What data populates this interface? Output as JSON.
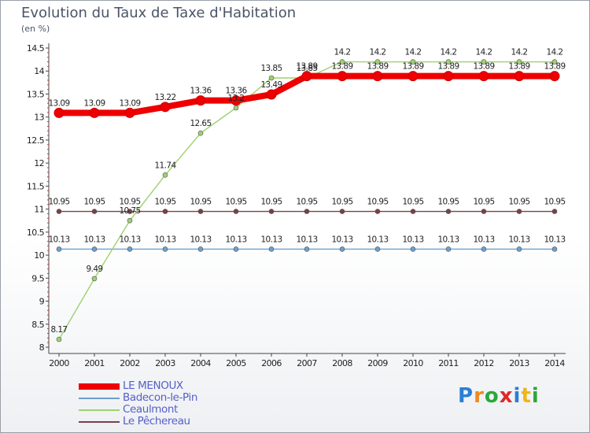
{
  "title": "Evolution du Taux de Taxe d'Habitation",
  "subtitle": "(en %)",
  "brand": {
    "letters": [
      "P",
      "r",
      "o",
      "x",
      "i",
      "t",
      "i"
    ],
    "colors": [
      "#2b7fd4",
      "#f08a1c",
      "#2aa83a",
      "#e02828",
      "#2b7fd4",
      "#f0b41c",
      "#2aa83a"
    ]
  },
  "chart_data": {
    "type": "line",
    "title": "Evolution du Taux de Taxe d'Habitation",
    "ylabel": "(en %)",
    "xlabel": "",
    "x": [
      "2000",
      "2001",
      "2002",
      "2003",
      "2004",
      "2005",
      "2006",
      "2007",
      "2008",
      "2009",
      "2010",
      "2011",
      "2012",
      "2013",
      "2014"
    ],
    "yticks": [
      "8",
      "8.5",
      "9",
      "9.5",
      "10",
      "10.5",
      "11",
      "11.5",
      "12",
      "12.5",
      "13",
      "13.5",
      "14",
      "14.5"
    ],
    "ylim": [
      8,
      14.5
    ],
    "series": [
      {
        "name": "LE MENOUX",
        "color": "#ee0000",
        "values": [
          13.09,
          13.09,
          13.09,
          13.22,
          13.36,
          13.36,
          13.49,
          13.89,
          13.89,
          13.89,
          13.89,
          13.89,
          13.89,
          13.89,
          13.89
        ],
        "labels": [
          "13.09",
          "13.09",
          "13.09",
          "13.22",
          "13.36",
          "13.36",
          "13.49",
          "13.89",
          "13.89",
          "13.89",
          "13.89",
          "13.89",
          "13.89",
          "13.89",
          "13.89"
        ]
      },
      {
        "name": "Badecon-le-Pin",
        "color": "#6aa0d0",
        "values": [
          10.13,
          10.13,
          10.13,
          10.13,
          10.13,
          10.13,
          10.13,
          10.13,
          10.13,
          10.13,
          10.13,
          10.13,
          10.13,
          10.13,
          10.13
        ],
        "labels": [
          "10.13",
          "10.13",
          "10.13",
          "10.13",
          "10.13",
          "10.13",
          "10.13",
          "10.13",
          "10.13",
          "10.13",
          "10.13",
          "10.13",
          "10.13",
          "10.13",
          "10.13"
        ]
      },
      {
        "name": "Ceaulmont",
        "color": "#9ed070",
        "values": [
          8.17,
          9.49,
          10.75,
          11.74,
          12.65,
          13.2,
          13.85,
          13.85,
          14.2,
          14.2,
          14.2,
          14.2,
          14.2,
          14.2,
          14.2
        ],
        "labels": [
          "8.17",
          "9.49",
          "10.75",
          "11.74",
          "12.65",
          "13.2",
          "13.85",
          "13.85",
          "14.2",
          "14.2",
          "14.2",
          "14.2",
          "14.2",
          "14.2",
          "14.2"
        ]
      },
      {
        "name": "Le Pêchereau",
        "color": "#7a4048",
        "values": [
          10.95,
          10.95,
          10.95,
          10.95,
          10.95,
          10.95,
          10.95,
          10.95,
          10.95,
          10.95,
          10.95,
          10.95,
          10.95,
          10.95,
          10.95
        ],
        "labels": [
          "10.95",
          "10.95",
          "10.95",
          "10.95",
          "10.95",
          "10.95",
          "10.95",
          "10.95",
          "10.95",
          "10.95",
          "10.95",
          "10.95",
          "10.95",
          "10.95",
          "10.95"
        ]
      }
    ],
    "legend": "bottom-left",
    "grid": false
  }
}
